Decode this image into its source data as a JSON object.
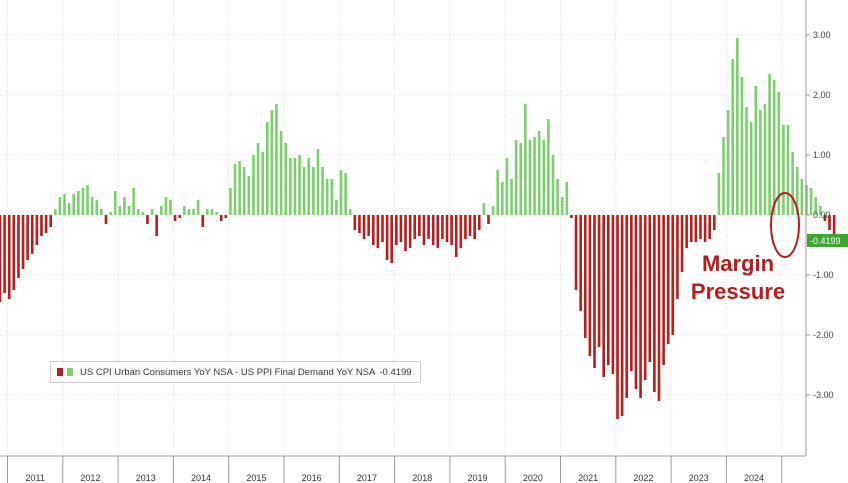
{
  "chart_data": {
    "type": "bar",
    "title": "",
    "xlabel": "",
    "ylabel": "",
    "ylim": [
      -3.9,
      3.4
    ],
    "y_ticks": [
      "3.00",
      "2.00",
      "1.00",
      "0.00",
      "-1.00",
      "-2.00",
      "-3.00"
    ],
    "y_tick_values": [
      3,
      2,
      1,
      0,
      -1,
      -2,
      -3
    ],
    "x_tick_labels": [
      "2011",
      "2012",
      "2013",
      "2014",
      "2015",
      "2016",
      "2017",
      "2018",
      "2019",
      "2020",
      "2021",
      "2022",
      "2023",
      "2024"
    ],
    "grid": true,
    "legend": {
      "placement": "bottom-left",
      "label": "US CPI Urban Consumers YoY NSA - US PPI Final Demand YoY NSA",
      "last_value": "-0.4199"
    },
    "last_value_label": "-0.4199",
    "annotation": {
      "line1": "Margin",
      "line2": "Pressure"
    },
    "colors": {
      "positive": "#7ccf6d",
      "negative": "#b81c1c",
      "grid": "#dcdcdc",
      "label_box": "#3fa535"
    },
    "series": [
      {
        "values": [
          -1.45,
          -1.3,
          -1.4,
          -1.25,
          -1.05,
          -0.9,
          -0.75,
          -0.65,
          -0.5,
          -0.35,
          -0.3,
          -0.2,
          0.1,
          0.3,
          0.35,
          0.2,
          0.35,
          0.4,
          0.45,
          0.5,
          0.3,
          0.25,
          0.1,
          -0.15,
          0.05,
          0.4,
          0.15,
          0.3,
          0.15,
          0.45,
          0.1,
          0.05,
          -0.15,
          0.1,
          -0.35,
          0.15,
          0.3,
          0.25,
          -0.1,
          -0.05,
          0.15,
          0.1,
          0.1,
          0.25,
          -0.2,
          0.1,
          0.1,
          0.05,
          -0.1,
          -0.05,
          0.45,
          0.85,
          0.9,
          0.8,
          0.65,
          1.0,
          1.2,
          1.05,
          1.55,
          1.75,
          1.85,
          1.4,
          1.2,
          0.95,
          0.95,
          1.0,
          0.8,
          0.95,
          0.8,
          1.1,
          0.8,
          0.6,
          0.6,
          0.25,
          0.75,
          0.7,
          0.1,
          -0.25,
          -0.3,
          -0.4,
          -0.35,
          -0.5,
          -0.55,
          -0.45,
          -0.75,
          -0.8,
          -0.5,
          -0.45,
          -0.6,
          -0.55,
          -0.4,
          -0.35,
          -0.5,
          -0.4,
          -0.5,
          -0.55,
          -0.4,
          -0.45,
          -0.5,
          -0.7,
          -0.55,
          -0.4,
          -0.35,
          -0.4,
          -0.25,
          0.2,
          -0.15,
          0.15,
          0.75,
          0.55,
          0.95,
          0.6,
          1.25,
          1.2,
          1.85,
          1.25,
          1.3,
          1.4,
          1.25,
          1.6,
          1.0,
          0.6,
          0.3,
          0.55,
          -0.05,
          -1.25,
          -1.6,
          -2.05,
          -2.35,
          -2.55,
          -2.2,
          -2.7,
          -2.5,
          -2.65,
          -3.4,
          -3.35,
          -3.05,
          -2.6,
          -2.9,
          -3.05,
          -2.75,
          -2.45,
          -2.95,
          -3.1,
          -2.5,
          -2.15,
          -2.0,
          -1.4,
          -0.95,
          -0.55,
          -0.45,
          -0.45,
          -0.4,
          -0.45,
          -0.4,
          -0.25,
          0.7,
          1.3,
          1.75,
          2.6,
          2.95,
          2.3,
          1.8,
          1.55,
          2.15,
          1.75,
          1.85,
          2.35,
          2.25,
          2.05,
          1.5,
          1.5,
          1.05,
          0.8,
          0.6,
          0.5,
          0.45,
          0.3,
          0.15,
          -0.1,
          -0.25,
          -0.42
        ]
      }
    ]
  }
}
